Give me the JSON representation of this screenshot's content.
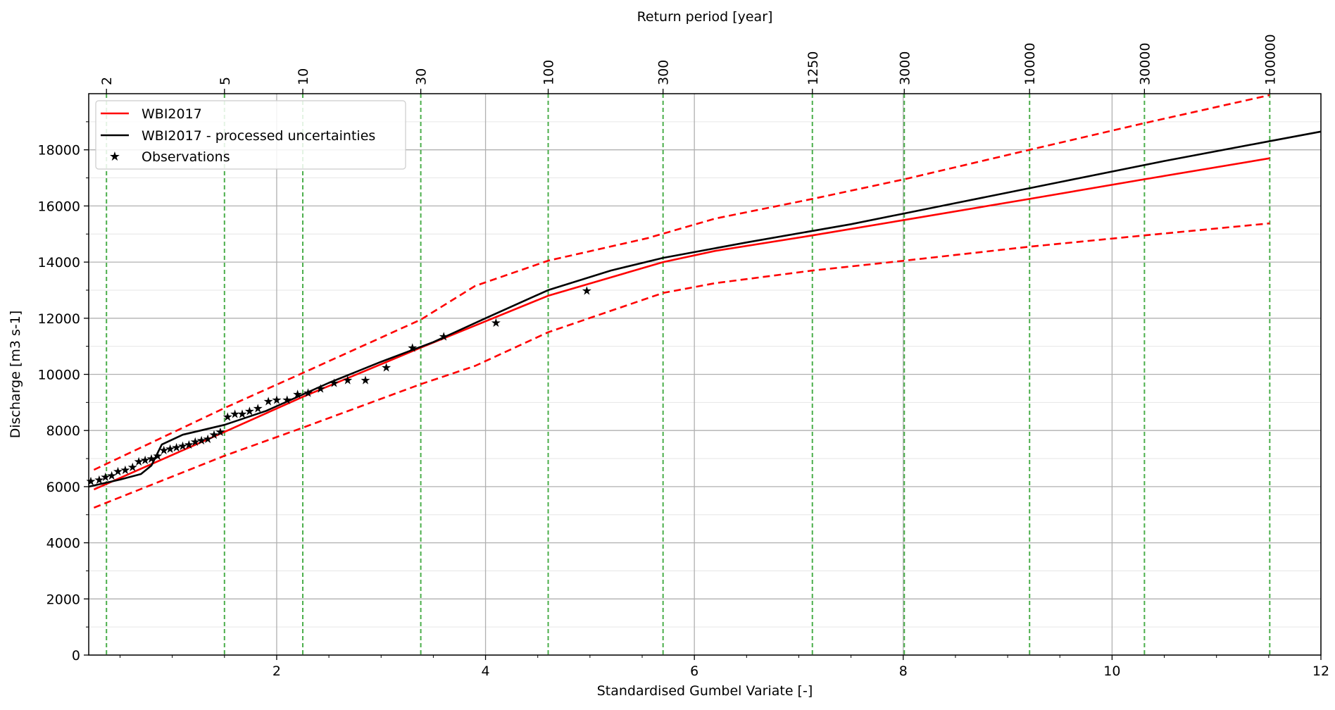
{
  "chart_data": {
    "type": "line",
    "top_axis_title": "Return period [year]",
    "xlabel": "Standardised Gumbel Variate [-]",
    "ylabel": "Discharge [m3 s-1]",
    "xlim": [
      0.2,
      12
    ],
    "ylim": [
      0,
      20000
    ],
    "x_ticks": [
      2,
      4,
      6,
      8,
      10,
      12
    ],
    "y_ticks": [
      0,
      2000,
      4000,
      6000,
      8000,
      10000,
      12000,
      14000,
      16000,
      18000
    ],
    "grid": true,
    "legend_position": "top-left",
    "return_periods": [
      {
        "label": "2",
        "x": 0.37
      },
      {
        "label": "5",
        "x": 1.5
      },
      {
        "label": "10",
        "x": 2.25
      },
      {
        "label": "30",
        "x": 3.38
      },
      {
        "label": "100",
        "x": 4.6
      },
      {
        "label": "300",
        "x": 5.7
      },
      {
        "label": "1250",
        "x": 7.13
      },
      {
        "label": "3000",
        "x": 8.01
      },
      {
        "label": "10000",
        "x": 9.21
      },
      {
        "label": "30000",
        "x": 10.31
      },
      {
        "label": "100000",
        "x": 11.51
      }
    ],
    "series": [
      {
        "name": "WBI2017",
        "color": "#ff0000",
        "style": "solid",
        "x": [
          0.25,
          1.5,
          2.25,
          3.38,
          4.6,
          5.7,
          6.2,
          7.13,
          8.01,
          9.21,
          10.31,
          11.51
        ],
        "y": [
          5900,
          7950,
          9200,
          10950,
          12800,
          14000,
          14400,
          14950,
          15500,
          16250,
          16950,
          17700
        ]
      },
      {
        "name": "WBI2017 - processed uncertainties",
        "color": "#000000",
        "style": "solid",
        "x": [
          0.2,
          0.5,
          0.7,
          0.8,
          0.9,
          1.1,
          1.5,
          1.9,
          2.5,
          3.0,
          3.5,
          4.0,
          4.6,
          5.2,
          5.7,
          6.5,
          7.5,
          8.5,
          9.5,
          10.5,
          11.5,
          12.0
        ],
        "y": [
          6000,
          6250,
          6450,
          6750,
          7500,
          7850,
          8200,
          8700,
          9700,
          10450,
          11150,
          12000,
          13000,
          13700,
          14150,
          14700,
          15350,
          16100,
          16850,
          17600,
          18300,
          18650
        ]
      },
      {
        "name": "",
        "color": "#ff0000",
        "style": "dashed",
        "x": [
          0.25,
          1.5,
          2.25,
          3.38,
          3.9,
          4.6,
          5.55,
          6.2,
          7.13,
          8.01,
          9.21,
          10.31,
          11.51
        ],
        "y": [
          6600,
          8800,
          10050,
          11950,
          13150,
          14050,
          14850,
          15550,
          16250,
          16950,
          18000,
          18950,
          19950
        ]
      },
      {
        "name": "",
        "color": "#ff0000",
        "style": "dashed",
        "x": [
          0.25,
          1.5,
          2.25,
          3.38,
          3.9,
          4.6,
          5.7,
          6.2,
          7.13,
          8.01,
          9.21,
          10.31,
          11.51
        ],
        "y": [
          5250,
          7100,
          8100,
          9650,
          10300,
          11500,
          12900,
          13250,
          13700,
          14050,
          14550,
          14950,
          15380
        ]
      },
      {
        "name": "Observations",
        "color": "#008000",
        "style": "markers",
        "x": [
          0.22,
          0.3,
          0.36,
          0.42,
          0.48,
          0.55,
          0.62,
          0.68,
          0.74,
          0.8,
          0.86,
          0.92,
          0.98,
          1.04,
          1.1,
          1.16,
          1.22,
          1.28,
          1.34,
          1.4,
          1.46,
          1.53,
          1.6,
          1.67,
          1.74,
          1.82,
          1.92,
          2.0,
          2.1,
          2.2,
          2.3,
          2.42,
          2.55,
          2.68,
          2.85,
          3.05,
          3.3,
          3.6,
          4.1,
          4.97
        ],
        "y": [
          6200,
          6250,
          6350,
          6400,
          6550,
          6600,
          6700,
          6900,
          6950,
          7000,
          7100,
          7300,
          7350,
          7400,
          7450,
          7500,
          7600,
          7650,
          7700,
          7850,
          7950,
          8500,
          8600,
          8600,
          8700,
          8800,
          9050,
          9100,
          9100,
          9300,
          9350,
          9500,
          9700,
          9800,
          9800,
          10250,
          10950,
          11350,
          11850,
          12980
        ]
      }
    ]
  }
}
